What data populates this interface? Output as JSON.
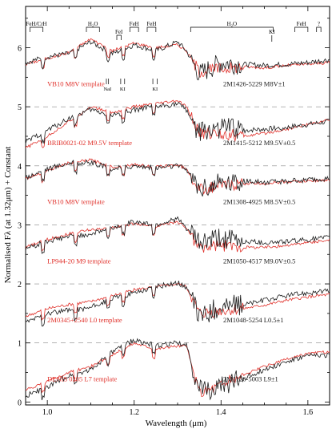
{
  "chart_data": {
    "type": "line",
    "xlabel": "Wavelength (μm)",
    "ylabel": "Normalised Fλ (at 1.32μm) + Constant",
    "xlim": [
      0.95,
      1.65
    ],
    "ylim": [
      -0.05,
      6.7
    ],
    "x_ticks": [
      1.0,
      1.2,
      1.4,
      1.6
    ],
    "x_tick_labels": [
      "1.0",
      "1.2",
      "1.4",
      "1.6"
    ],
    "y_ticks": [
      0,
      1,
      2,
      3,
      4,
      5,
      6
    ],
    "y_tick_labels": [
      "0",
      "1",
      "2",
      "3",
      "4",
      "5",
      "6"
    ],
    "dashed_reference_levels": [
      1,
      2,
      3,
      4,
      5
    ],
    "colors": {
      "object": "#1a1a1a",
      "template": "#e0302a",
      "axis": "#000000",
      "dash": "#888888"
    },
    "series": [
      {
        "offset": 5,
        "template_label": "VB10 M8V template",
        "object_label": "2M1426-5229 M8V±1",
        "x": [
          0.95,
          1.0,
          1.05,
          1.1,
          1.15,
          1.2,
          1.25,
          1.3,
          1.32,
          1.35,
          1.4,
          1.45,
          1.5,
          1.55,
          1.6,
          1.65
        ],
        "object": [
          0.75,
          0.85,
          0.9,
          1.1,
          0.9,
          1.05,
          0.95,
          1.1,
          0.95,
          0.55,
          0.75,
          0.72,
          0.7,
          0.72,
          0.75,
          0.8
        ],
        "template": [
          0.72,
          0.82,
          0.92,
          1.15,
          0.95,
          1.08,
          1.0,
          1.05,
          0.95,
          0.6,
          0.65,
          0.68,
          0.66,
          0.7,
          0.72,
          0.75
        ]
      },
      {
        "offset": 4,
        "template_label": "BRIB0021-02 M9.5V template",
        "object_label": "2M1415-5212 M9.5V±0.5",
        "x": [
          0.95,
          1.0,
          1.05,
          1.1,
          1.15,
          1.2,
          1.25,
          1.3,
          1.32,
          1.35,
          1.4,
          1.45,
          1.5,
          1.55,
          1.6,
          1.65
        ],
        "object": [
          0.4,
          0.6,
          0.8,
          0.95,
          0.85,
          0.95,
          1.0,
          1.05,
          0.95,
          0.55,
          0.65,
          0.6,
          0.62,
          0.65,
          0.7,
          0.75
        ],
        "template": [
          0.3,
          0.5,
          0.75,
          1.0,
          0.9,
          1.0,
          1.05,
          1.1,
          1.0,
          0.55,
          0.55,
          0.5,
          0.55,
          0.62,
          0.7,
          0.78
        ]
      },
      {
        "offset": 3,
        "template_label": "VB10 M8V template",
        "object_label": "2M1308-4925 M8.5V±0.5",
        "x": [
          0.95,
          1.0,
          1.05,
          1.1,
          1.15,
          1.2,
          1.25,
          1.3,
          1.32,
          1.35,
          1.4,
          1.45,
          1.5,
          1.55,
          1.6,
          1.65
        ],
        "object": [
          0.8,
          0.95,
          1.05,
          1.05,
          0.95,
          1.0,
          0.97,
          1.0,
          0.95,
          0.62,
          0.72,
          0.74,
          0.72,
          0.74,
          0.76,
          0.78
        ],
        "template": [
          0.78,
          0.92,
          1.05,
          1.1,
          0.98,
          1.02,
          0.98,
          1.02,
          0.95,
          0.6,
          0.66,
          0.7,
          0.7,
          0.73,
          0.74,
          0.76
        ]
      },
      {
        "offset": 2,
        "template_label": "LP944-20 M9 template",
        "object_label": "2M1050-4517 M9.0V±0.5",
        "x": [
          0.95,
          1.0,
          1.05,
          1.1,
          1.15,
          1.2,
          1.25,
          1.3,
          1.32,
          1.35,
          1.4,
          1.45,
          1.5,
          1.55,
          1.6,
          1.65
        ],
        "object": [
          0.6,
          0.72,
          0.8,
          0.85,
          0.95,
          1.05,
          1.0,
          1.1,
          0.95,
          0.7,
          0.78,
          0.72,
          0.7,
          0.72,
          0.75,
          0.78
        ],
        "template": [
          0.62,
          0.75,
          0.85,
          0.92,
          0.95,
          1.02,
          0.98,
          1.05,
          0.95,
          0.6,
          0.65,
          0.62,
          0.62,
          0.65,
          0.7,
          0.74
        ]
      },
      {
        "offset": 1,
        "template_label": "2M0345+2540 L0 template",
        "object_label": "2M1048-5254 L0.5±1",
        "x": [
          0.95,
          1.0,
          1.05,
          1.1,
          1.15,
          1.2,
          1.25,
          1.3,
          1.32,
          1.35,
          1.4,
          1.45,
          1.5,
          1.55,
          1.6,
          1.65
        ],
        "object": [
          0.35,
          0.5,
          0.55,
          0.6,
          0.75,
          0.85,
          0.95,
          1.02,
          0.95,
          0.45,
          0.62,
          0.65,
          0.72,
          0.8,
          0.85,
          0.88
        ],
        "template": [
          0.45,
          0.58,
          0.65,
          0.7,
          0.8,
          0.9,
          0.95,
          1.0,
          0.95,
          0.5,
          0.55,
          0.58,
          0.64,
          0.72,
          0.78,
          0.82
        ]
      },
      {
        "offset": 0,
        "template_label": "DENIS 0205 L7 template",
        "object_label": "2M1126-5003 L9±1",
        "x": [
          0.95,
          1.0,
          1.05,
          1.1,
          1.15,
          1.2,
          1.25,
          1.3,
          1.32,
          1.35,
          1.4,
          1.45,
          1.5,
          1.55,
          1.6,
          1.65
        ],
        "object": [
          0.1,
          0.25,
          0.45,
          0.55,
          0.85,
          1.05,
          0.95,
          1.0,
          0.95,
          0.2,
          0.25,
          0.4,
          0.55,
          0.68,
          0.78,
          0.8
        ],
        "template": [
          0.2,
          0.35,
          0.5,
          0.6,
          0.8,
          1.0,
          0.9,
          0.95,
          0.95,
          0.15,
          0.3,
          0.45,
          0.6,
          0.72,
          0.82,
          0.85
        ]
      }
    ],
    "band_labels": [
      {
        "label": "FeH/CrH",
        "x": [
          0.96,
          0.99
        ],
        "row": 1
      },
      {
        "label": "H₂O",
        "x": [
          1.09,
          1.12
        ],
        "row": 1
      },
      {
        "label": "FeH",
        "x": [
          1.19,
          1.21
        ],
        "row": 1
      },
      {
        "label": "FeH",
        "x": [
          1.23,
          1.25
        ],
        "row": 1
      },
      {
        "label": "H₂O",
        "x": [
          1.33,
          1.52
        ],
        "row": 1
      },
      {
        "label": "FeH",
        "x": [
          1.57,
          1.6
        ],
        "row": 1
      },
      {
        "label": "?",
        "x": [
          1.62,
          1.63
        ],
        "row": 1
      },
      {
        "label": "FeI",
        "x": [
          1.16,
          1.17
        ],
        "row": 2
      },
      {
        "label": "KI",
        "x": [
          1.517,
          1.517
        ],
        "row": 2
      }
    ],
    "line_markers": [
      {
        "label": "NaI",
        "x": [
          1.136,
          1.141
        ]
      },
      {
        "label": "KI",
        "x": [
          1.169,
          1.178
        ]
      },
      {
        "label": "KI",
        "x": [
          1.243,
          1.253
        ]
      }
    ]
  }
}
